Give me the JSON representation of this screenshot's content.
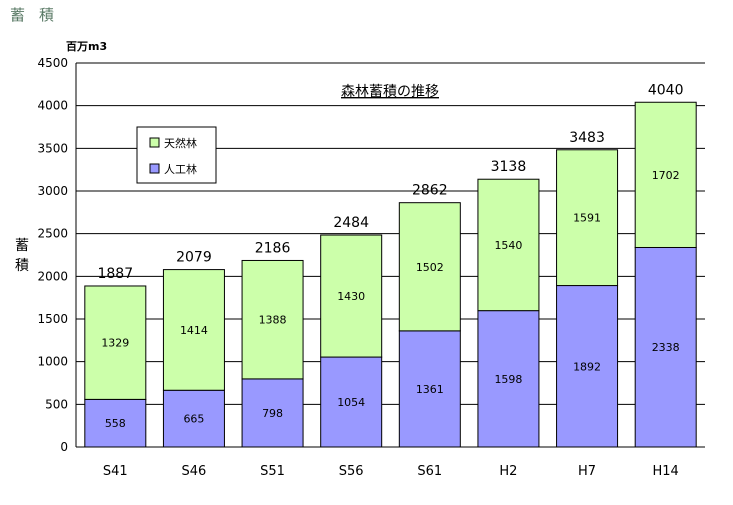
{
  "page_title": "蓄積",
  "chart_data": {
    "type": "bar",
    "stacked": true,
    "title": "森林蓄積の推移",
    "ylabel": "蓄積",
    "unit": "百万m3",
    "ylim": [
      0,
      4500
    ],
    "yticks": [
      0,
      500,
      1000,
      1500,
      2000,
      2500,
      3000,
      3500,
      4000,
      4500
    ],
    "grid": true,
    "legend_position": "top-left",
    "categories": [
      "S41",
      "S46",
      "S51",
      "S56",
      "S61",
      "H2",
      "H7",
      "H14"
    ],
    "series": [
      {
        "name": "人工林",
        "color": "#9999ff",
        "values": [
          558,
          665,
          798,
          1054,
          1361,
          1598,
          1892,
          2338
        ]
      },
      {
        "name": "天然林",
        "color": "#ccffaa",
        "values": [
          1329,
          1414,
          1388,
          1430,
          1502,
          1540,
          1591,
          1702
        ]
      }
    ],
    "totals": [
      1887,
      2079,
      2186,
      2484,
      2862,
      3138,
      3483,
      4040
    ],
    "legend_order": [
      "天然林",
      "人工林"
    ]
  }
}
